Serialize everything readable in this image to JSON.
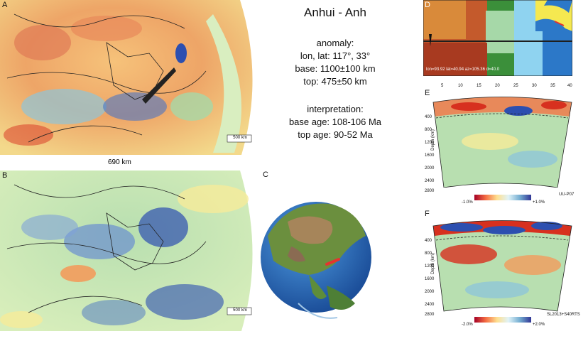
{
  "panels": {
    "a": "A",
    "b": "B",
    "c": "C",
    "d": "D",
    "e": "E",
    "f": "F"
  },
  "title": "Anhui - Anh",
  "anomaly": {
    "heading": "anomaly:",
    "lonlat": "lon, lat: 117°, 33°",
    "base": "base: 1100±100 km",
    "top": "top: 475±50 km"
  },
  "interpretation": {
    "heading": "interpretation:",
    "base_age": "base age: 108-106 Ma",
    "top_age": "top age: 90-52 Ma"
  },
  "map_a": {
    "distance": "690 km",
    "scalebar": "500 km"
  },
  "map_b": {
    "scalebar": "500 km"
  },
  "profile_d": {
    "readout": "lon=93.92 lat=40.94 az=105.36 d=40.0"
  },
  "section_e": {
    "ticks": [
      "5",
      "10",
      "15",
      "20",
      "25",
      "30",
      "35",
      "40"
    ],
    "depth_label": "Depth (km)",
    "depths": [
      "400",
      "800",
      "1200",
      "1600",
      "2000",
      "2400",
      "2800"
    ],
    "scale_min": "-1.0%",
    "scale_max": "+1.0%",
    "model": "UU-P07"
  },
  "section_f": {
    "depth_label": "Depth (km)",
    "depths": [
      "400",
      "800",
      "1200",
      "1600",
      "2000",
      "2400",
      "2800"
    ],
    "scale_min": "-2.0%",
    "scale_max": "+2.0%",
    "model": "SL2013+S40RTS"
  },
  "colors": {
    "slow_red": "#d7301f",
    "warm_orange": "#f29b5c",
    "neutral_yellow": "#f6eb9a",
    "cool_green": "#a6d8a8",
    "fast_blue": "#2c4fb0",
    "ocean": "#2c78c8",
    "land_green": "#4e8c3a"
  }
}
